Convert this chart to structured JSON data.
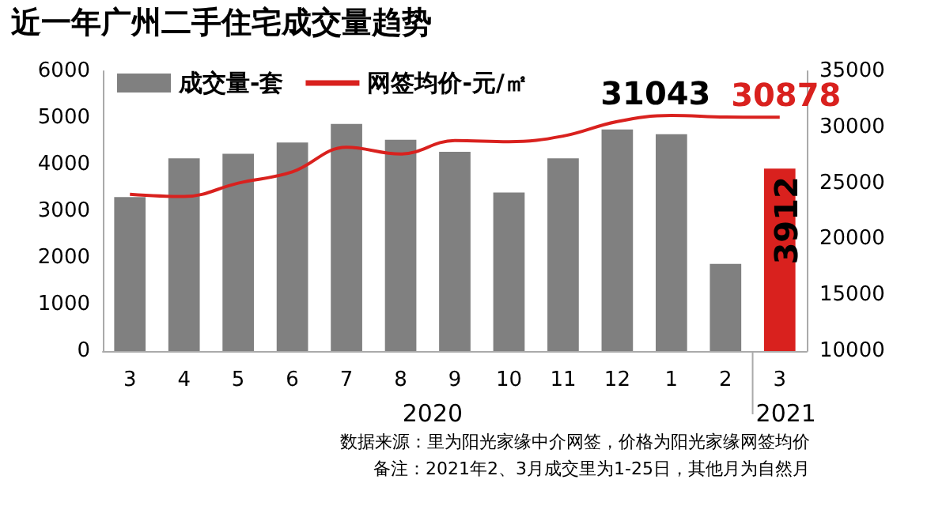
{
  "chart_data": {
    "type": "bar",
    "title": "近一年广州二手住宅成交量趋势",
    "categories": [
      "3",
      "4",
      "5",
      "6",
      "7",
      "8",
      "9",
      "10",
      "11",
      "12",
      "1",
      "2",
      "3"
    ],
    "series": [
      {
        "name": "成交量-套",
        "type": "bar",
        "color": "#808080",
        "colors": [
          "#808080",
          "#808080",
          "#808080",
          "#808080",
          "#808080",
          "#808080",
          "#808080",
          "#808080",
          "#808080",
          "#808080",
          "#808080",
          "#808080",
          "#d9211e"
        ],
        "values": [
          3300,
          4130,
          4230,
          4470,
          4870,
          4530,
          4270,
          3400,
          4130,
          4750,
          4650,
          1870,
          3912
        ],
        "value_labels": [
          null,
          null,
          null,
          null,
          null,
          null,
          null,
          null,
          null,
          null,
          null,
          null,
          "3912"
        ]
      },
      {
        "name": "网签均价-元/㎡",
        "type": "line",
        "axis": "y2",
        "color": "#d9211e",
        "values": [
          24000,
          23800,
          25000,
          26000,
          28200,
          27600,
          28800,
          28700,
          29200,
          30500,
          31043,
          30900,
          30878
        ],
        "value_labels": [
          null,
          null,
          null,
          null,
          null,
          null,
          null,
          null,
          null,
          null,
          "31043",
          null,
          "30878"
        ]
      }
    ],
    "ylim": [
      0,
      6000
    ],
    "yticks": [
      0,
      1000,
      2000,
      3000,
      4000,
      5000,
      6000
    ],
    "y2lim": [
      10000,
      35000
    ],
    "y2ticks": [
      10000,
      15000,
      20000,
      25000,
      30000,
      35000
    ],
    "grid": false,
    "legend": "top left",
    "marker": "none",
    "line_style": "solid",
    "annotations": [
      "2020",
      "2021",
      "数据来源：里为阳光家缘中介网签，价格为阳光家缘网签均价",
      "备注：2021年2、3月成交里为1-25日，其他月为自然月"
    ]
  }
}
